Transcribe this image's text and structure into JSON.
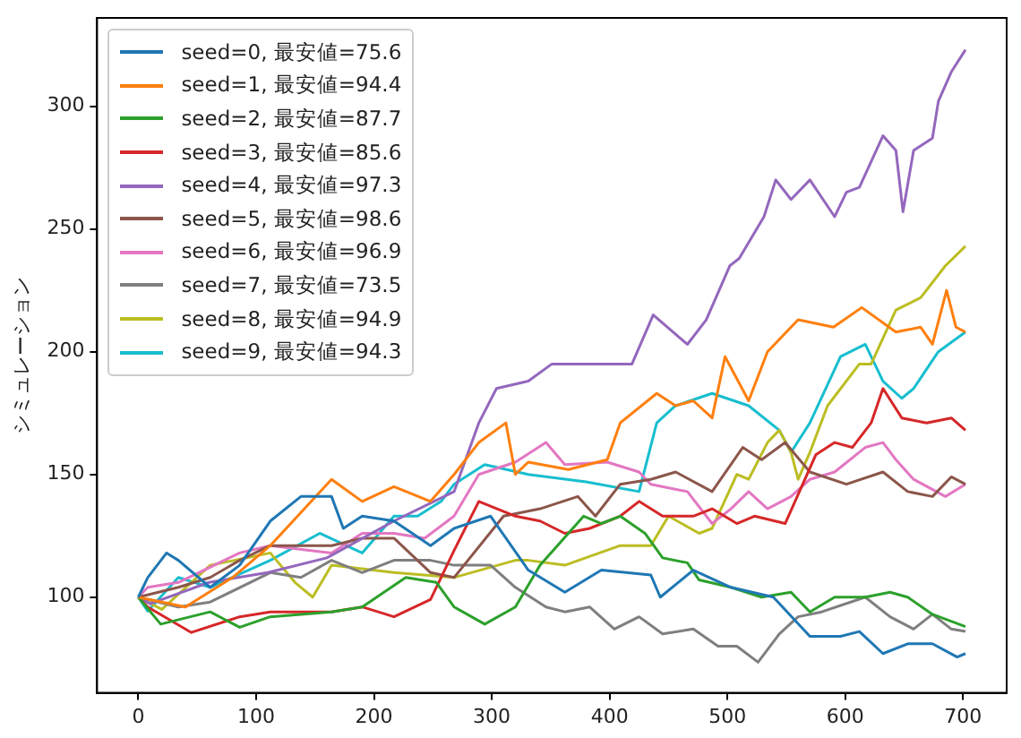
{
  "chart_data": {
    "type": "line",
    "ylabel": "シミュレーション",
    "xlim": [
      -35,
      737
    ],
    "ylim": [
      61,
      336
    ],
    "xticks": [
      0,
      100,
      200,
      300,
      400,
      500,
      600,
      700
    ],
    "yticks": [
      100,
      150,
      200,
      250,
      300
    ],
    "grid": false,
    "legend": "top left",
    "marker": "none",
    "line_style": "solid",
    "series": [
      {
        "name": "seed=0, 最安値=75.6",
        "color": "#1f77b4",
        "x": [
          0,
          8,
          24,
          34,
          61,
          86,
          112,
          138,
          164,
          174,
          190,
          217,
          248,
          268,
          299,
          331,
          362,
          393,
          435,
          443,
          471,
          503,
          539,
          570,
          596,
          612,
          632,
          653,
          674,
          695,
          702
        ],
        "values": [
          100,
          108,
          118,
          115,
          104,
          113,
          131,
          141,
          141,
          128,
          133,
          131,
          121,
          128,
          133,
          111,
          102,
          111,
          109,
          100,
          111,
          104,
          100,
          84,
          84,
          86,
          77,
          81,
          81,
          75.6,
          77
        ]
      },
      {
        "name": "seed=1, 最安値=94.4",
        "color": "#ff7f0e",
        "x": [
          0,
          40,
          80,
          112,
          164,
          190,
          217,
          248,
          268,
          289,
          312,
          320,
          331,
          365,
          398,
          409,
          440,
          456,
          471,
          487,
          498,
          518,
          534,
          560,
          590,
          614,
          643,
          664,
          674,
          686,
          694,
          702
        ],
        "values": [
          100,
          96,
          108,
          121,
          148,
          139,
          145,
          139,
          150,
          163,
          171,
          150,
          155,
          152,
          156,
          171,
          183,
          178,
          180,
          173,
          198,
          180,
          200,
          213,
          210,
          218,
          208,
          210,
          203,
          225,
          210,
          208
        ]
      },
      {
        "name": "seed=2, 最安値=87.7",
        "color": "#2ca02c",
        "x": [
          0,
          19,
          61,
          86,
          112,
          164,
          190,
          227,
          253,
          268,
          294,
          320,
          341,
          352,
          378,
          393,
          409,
          430,
          445,
          466,
          476,
          503,
          529,
          554,
          570,
          591,
          617,
          638,
          653,
          674,
          702
        ],
        "values": [
          100,
          89,
          94,
          87.7,
          92,
          94,
          96,
          108,
          106,
          96,
          89,
          96,
          113,
          119,
          133,
          130,
          133,
          126,
          116,
          114,
          107,
          104,
          100,
          102,
          94,
          100,
          100,
          102,
          100,
          93,
          88
        ]
      },
      {
        "name": "seed=3, 最安値=85.6",
        "color": "#d62728",
        "x": [
          0,
          8,
          45,
          86,
          112,
          164,
          190,
          217,
          248,
          268,
          289,
          320,
          341,
          362,
          383,
          409,
          425,
          445,
          471,
          487,
          508,
          523,
          549,
          575,
          591,
          606,
          622,
          632,
          648,
          669,
          690,
          702
        ],
        "values": [
          100,
          96,
          85.6,
          92,
          94,
          94,
          96,
          92,
          99,
          119,
          139,
          133,
          131,
          126,
          128,
          133,
          139,
          133,
          133,
          136,
          130,
          133,
          130,
          158,
          163,
          161,
          171,
          185,
          173,
          171,
          173,
          168
        ]
      },
      {
        "name": "seed=4, 最安値=97.3",
        "color": "#9467bd",
        "x": [
          0,
          10,
          60,
          110,
          160,
          217,
          268,
          289,
          304,
          331,
          351,
          419,
          437,
          466,
          482,
          502,
          510,
          531,
          541,
          554,
          570,
          591,
          601,
          612,
          632,
          643,
          649,
          658,
          674,
          679,
          690,
          702
        ],
        "values": [
          100,
          97.3,
          106,
          110,
          116,
          131,
          143,
          171,
          185,
          188,
          195,
          195,
          215,
          203,
          213,
          235,
          238,
          255,
          270,
          262,
          270,
          255,
          265,
          267,
          288,
          282,
          257,
          282,
          287,
          302,
          314,
          323
        ]
      },
      {
        "name": "seed=5, 最安値=98.6",
        "color": "#8c564b",
        "x": [
          0,
          34,
          61,
          86,
          112,
          164,
          190,
          217,
          248,
          268,
          310,
          341,
          373,
          388,
          409,
          435,
          456,
          487,
          513,
          529,
          549,
          570,
          601,
          632,
          653,
          674,
          690,
          702
        ],
        "values": [
          100,
          104,
          108,
          115,
          121,
          121,
          124,
          124,
          110,
          108,
          133,
          136,
          141,
          133,
          146,
          148,
          151,
          143,
          161,
          156,
          163,
          151,
          146,
          151,
          143,
          141,
          149,
          146
        ]
      },
      {
        "name": "seed=6, 最安値=96.9",
        "color": "#e377c2",
        "x": [
          0,
          8,
          34,
          86,
          112,
          164,
          190,
          217,
          243,
          268,
          289,
          320,
          346,
          362,
          398,
          425,
          435,
          466,
          487,
          503,
          518,
          534,
          554,
          570,
          591,
          617,
          632,
          643,
          658,
          685,
          702
        ],
        "values": [
          100,
          104,
          106,
          118,
          121,
          118,
          126,
          126,
          124,
          133,
          150,
          155,
          163,
          154,
          155,
          151,
          146,
          143,
          130,
          136,
          143,
          136,
          141,
          148,
          151,
          161,
          163,
          156,
          148,
          141,
          146
        ]
      },
      {
        "name": "seed=7, 最安値=73.5",
        "color": "#7f7f7f",
        "x": [
          0,
          34,
          61,
          112,
          138,
          164,
          190,
          217,
          248,
          268,
          299,
          320,
          346,
          362,
          383,
          404,
          425,
          445,
          471,
          492,
          508,
          526,
          544,
          560,
          580,
          617,
          638,
          658,
          674,
          690,
          702
        ],
        "values": [
          100,
          96,
          98,
          110,
          108,
          115,
          110,
          115,
          115,
          113,
          113,
          104,
          96,
          94,
          96,
          87,
          92,
          85,
          87,
          80,
          80,
          73.5,
          85,
          92,
          94,
          100,
          92,
          87,
          93,
          87,
          86
        ]
      },
      {
        "name": "seed=8, 最安値=94.9",
        "color": "#bcbd22",
        "x": [
          0,
          20,
          61,
          112,
          133,
          148,
          164,
          217,
          268,
          320,
          331,
          362,
          409,
          435,
          450,
          476,
          487,
          508,
          518,
          534,
          544,
          554,
          560,
          570,
          585,
          612,
          622,
          643,
          664,
          685,
          702
        ],
        "values": [
          100,
          95,
          113,
          118,
          106,
          100,
          113,
          110,
          108,
          115,
          115,
          113,
          121,
          121,
          133,
          126,
          128,
          150,
          148,
          163,
          168,
          159,
          148,
          159,
          178,
          195,
          195,
          217,
          222,
          235,
          243
        ]
      },
      {
        "name": "seed=9, 最安値=94.3",
        "color": "#17becf",
        "x": [
          0,
          8,
          34,
          61,
          112,
          154,
          190,
          217,
          237,
          257,
          268,
          294,
          331,
          380,
          425,
          440,
          456,
          487,
          518,
          544,
          554,
          570,
          596,
          617,
          632,
          648,
          658,
          679,
          702
        ],
        "values": [
          100,
          94.3,
          108,
          104,
          115,
          126,
          118,
          133,
          133,
          139,
          146,
          154,
          150,
          147,
          143,
          171,
          178,
          183,
          178,
          168,
          159,
          171,
          198,
          203,
          188,
          181,
          185,
          200,
          208
        ]
      }
    ]
  }
}
